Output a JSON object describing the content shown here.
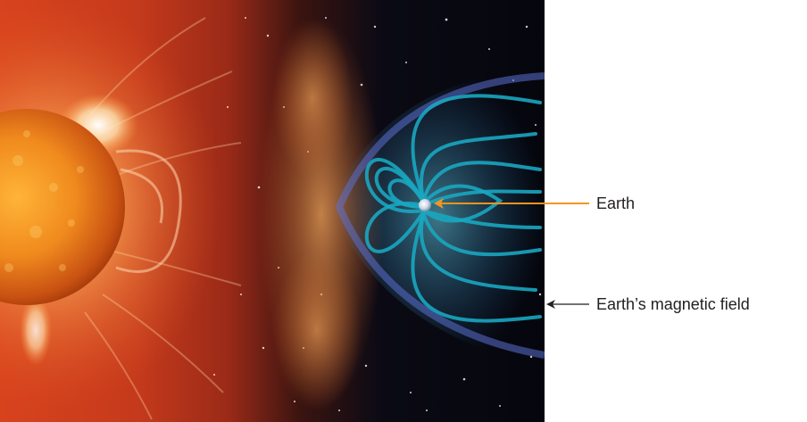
{
  "diagram": {
    "labels": {
      "earth": "Earth",
      "magnetic_field": "Earth’s magnetic field"
    },
    "colors": {
      "earth_arrow": "#f7941d",
      "field_arrow": "#231f20",
      "magnetic_field_lines": "#1aa6c0",
      "sun_core": "#f08a1e",
      "solar_wind": "#c8401c",
      "space": "#05060d"
    }
  }
}
